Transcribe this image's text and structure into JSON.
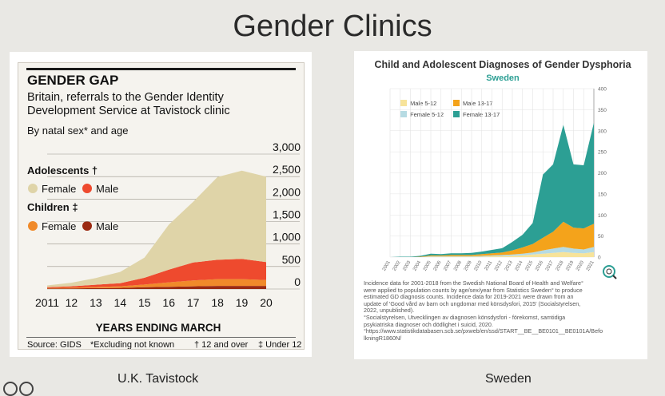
{
  "slide": {
    "title": "Gender Clinics",
    "caption_left": "U.K. Tavistock",
    "caption_right": "Sweden"
  },
  "left_chart": {
    "title": "GENDER GAP",
    "subtitle_line1": "Britain, referrals to the Gender Identity",
    "subtitle_line2": "Development Service at Tavistock clinic",
    "by_line": "By natal sex* and age",
    "legend_adolescents": "Adolescents †",
    "legend_children": "Children ‡",
    "legend_female": "Female",
    "legend_male": "Male",
    "xlabel": "YEARS ENDING MARCH",
    "source": "Source: GIDS",
    "note1": "*Excluding not known",
    "note2": "† 12 and over",
    "note3": "‡ Under 12"
  },
  "right_chart": {
    "title": "Child and Adolescent Diagnoses of Gender Dysphoria",
    "subtitle": "Sweden",
    "legend_male_5_12": "Male 5-12",
    "legend_male_13_17": "Male 13-17",
    "legend_female_5_12": "Female 5-12",
    "legend_female_13_17": "Female 13-17",
    "notes": [
      "Incidence data for 2001-2018 from the Swedish National Board of Health and Welfare°",
      "were applied to population counts by age/sex/year from Statistics Sweden° to produce",
      "estimated GD diagnosis counts. Incidence data for 2019-2021 were drawn from an",
      "update of 'Good vård av barn och ungdomar med könsdysfori, 2015' (Socialstyrelsen,",
      "2022, unpublished).",
      "°Socialstyrelsen, Utvecklingen av diagnosen könsdysfori - förekomst, samtidiga",
      "psykiatriska diagnoser och dödlighet i suicid, 2020.",
      "°https://www.statistikdatabasen.scb.se/pxweb/en/ssd/START__BE__BE0101__BE0101A/Befo",
      "lkningR1860N/"
    ]
  },
  "chart_data": [
    {
      "type": "area",
      "stacked": true,
      "title": "GENDER GAP",
      "subtitle": "Britain, referrals to the Gender Identity Development Service at Tavistock clinic",
      "xlabel": "YEARS ENDING MARCH",
      "ylabel": "",
      "x": [
        "2011",
        "12",
        "13",
        "14",
        "15",
        "16",
        "17",
        "18",
        "19",
        "20"
      ],
      "ylim": [
        0,
        3000
      ],
      "yticks": [
        "3,000",
        "2,500",
        "2,000",
        "1,500",
        "1,000",
        "500",
        "0"
      ],
      "yticks_values": [
        3000,
        2500,
        2000,
        1500,
        1000,
        500,
        0
      ],
      "series": [
        {
          "name": "Children Male",
          "color": "#9b2a12",
          "values": [
            10,
            15,
            20,
            25,
            40,
            50,
            60,
            70,
            70,
            70
          ]
        },
        {
          "name": "Children Female",
          "color": "#f08a2a",
          "values": [
            10,
            15,
            25,
            35,
            60,
            100,
            130,
            150,
            150,
            130
          ]
        },
        {
          "name": "Adolescents Male",
          "color": "#ee4a2e",
          "values": [
            20,
            30,
            50,
            70,
            150,
            280,
            400,
            430,
            450,
            400
          ]
        },
        {
          "name": "Adolescents Female",
          "color": "#dfd4a8",
          "values": [
            40,
            80,
            150,
            250,
            450,
            1000,
            1350,
            1840,
            1960,
            1900
          ]
        }
      ]
    },
    {
      "type": "area",
      "stacked": true,
      "title": "Child and Adolescent Diagnoses of Gender Dysphoria",
      "subtitle": "Sweden",
      "xlabel": "",
      "ylabel": "",
      "x": [
        "2001",
        "2002",
        "2003",
        "2004",
        "2005",
        "2006",
        "2007",
        "2008",
        "2009",
        "2010",
        "2011",
        "2012",
        "2013",
        "2014",
        "2015",
        "2016",
        "2017",
        "2018",
        "2019",
        "2020",
        "2021"
      ],
      "ylim": [
        0,
        400
      ],
      "yticks": [
        "0",
        "50",
        "100",
        "150",
        "200",
        "250",
        "300",
        "350",
        "400"
      ],
      "series": [
        {
          "name": "Male 5-12",
          "color": "#f7e39a",
          "values": [
            0,
            0,
            0,
            0,
            1,
            1,
            1,
            1,
            1,
            1,
            2,
            2,
            3,
            4,
            6,
            8,
            10,
            12,
            10,
            9,
            12
          ]
        },
        {
          "name": "Female 5-12",
          "color": "#b6dbe3",
          "values": [
            0,
            0,
            0,
            0,
            1,
            1,
            1,
            1,
            1,
            2,
            2,
            3,
            3,
            4,
            5,
            8,
            10,
            12,
            10,
            9,
            12
          ]
        },
        {
          "name": "Male 13-17",
          "color": "#f4a31b",
          "values": [
            0,
            0,
            0,
            1,
            2,
            2,
            3,
            3,
            3,
            4,
            5,
            6,
            10,
            15,
            20,
            30,
            40,
            60,
            50,
            50,
            55
          ]
        },
        {
          "name": "Female 13-17",
          "color": "#2c9f94",
          "values": [
            0,
            1,
            1,
            2,
            4,
            3,
            4,
            4,
            5,
            6,
            8,
            10,
            20,
            30,
            50,
            150,
            160,
            230,
            150,
            150,
            240
          ]
        }
      ]
    }
  ]
}
